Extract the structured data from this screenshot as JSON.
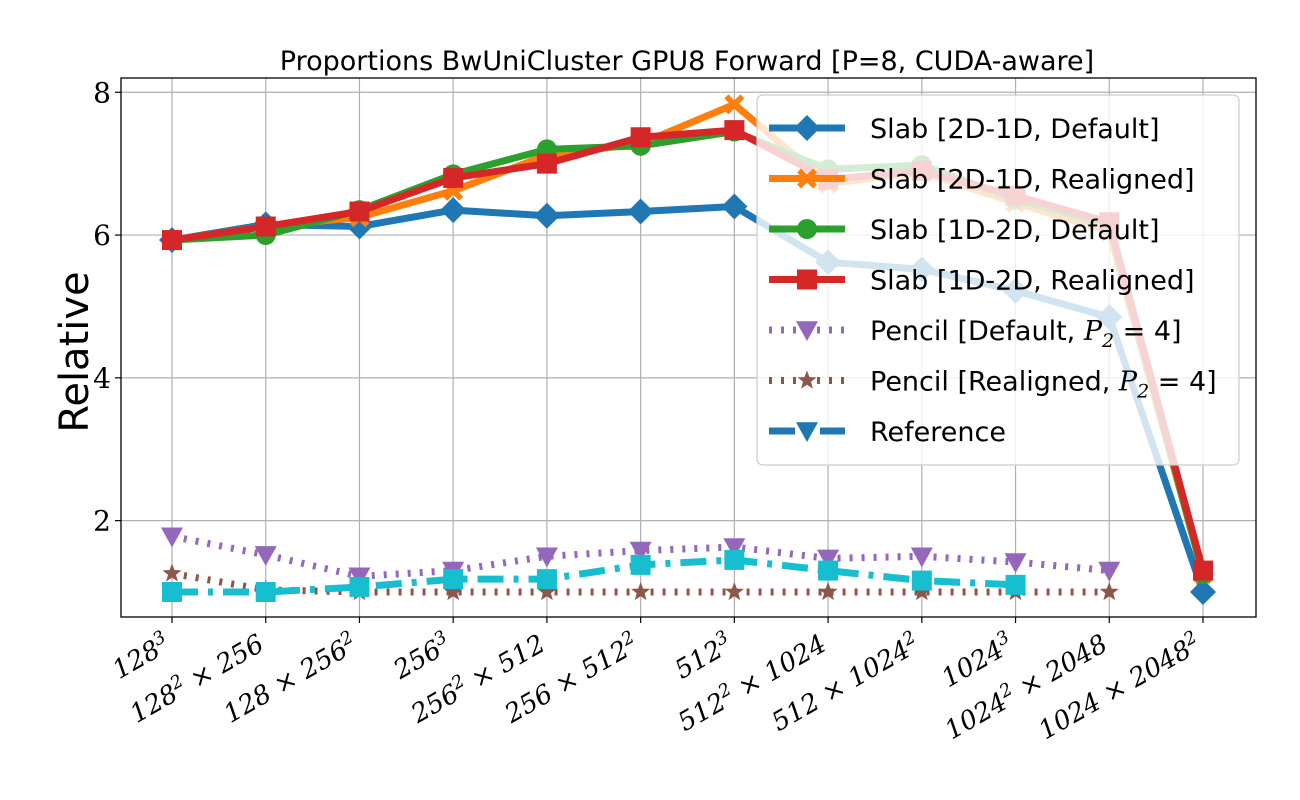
{
  "chart_data": {
    "type": "line",
    "title": "Proportions BwUniCluster GPU8 Forward [P=8, CUDA-aware]",
    "xlabel": "",
    "ylabel": "Relative",
    "categories": [
      {
        "base": "128",
        "sup": "3",
        "rest": ""
      },
      {
        "base": "128",
        "sup": "2",
        "rest": " × 256"
      },
      {
        "base": "128 × 256",
        "sup": "2",
        "rest": ""
      },
      {
        "base": "256",
        "sup": "3",
        "rest": ""
      },
      {
        "base": "256",
        "sup": "2",
        "rest": " × 512"
      },
      {
        "base": "256 × 512",
        "sup": "2",
        "rest": ""
      },
      {
        "base": "512",
        "sup": "3",
        "rest": ""
      },
      {
        "base": "512",
        "sup": "2",
        "rest": " × 1024"
      },
      {
        "base": "512 × 1024",
        "sup": "2",
        "rest": ""
      },
      {
        "base": "1024",
        "sup": "3",
        "rest": ""
      },
      {
        "base": "1024",
        "sup": "2",
        "rest": " × 2048"
      },
      {
        "base": "1024 × 2048",
        "sup": "2",
        "rest": ""
      }
    ],
    "ylim": [
      0.65,
      8.2
    ],
    "yticks": [
      2,
      4,
      6,
      8
    ],
    "grid": true,
    "legend_position": "top-right",
    "series": [
      {
        "name": "Slab [2D-1D, Default]",
        "color": "#1f77b4",
        "marker": "diamond",
        "dash": "solid",
        "values": [
          5.93,
          6.15,
          6.12,
          6.35,
          6.27,
          6.33,
          6.4,
          5.62,
          5.52,
          5.22,
          4.85,
          1.0
        ]
      },
      {
        "name": "Slab [2D-1D, Realigned]",
        "color": "#ff7f0e",
        "marker": "x",
        "dash": "solid",
        "values": [
          5.93,
          6.12,
          6.25,
          6.62,
          7.12,
          7.28,
          7.83,
          6.72,
          6.88,
          6.45,
          6.05,
          1.25
        ]
      },
      {
        "name": "Slab [1D-2D, Default]",
        "color": "#2ca02c",
        "marker": "circle",
        "dash": "solid",
        "values": [
          5.93,
          6.0,
          6.35,
          6.85,
          7.2,
          7.25,
          7.45,
          6.92,
          6.98,
          6.5,
          6.15,
          1.25
        ]
      },
      {
        "name": "Slab [1D-2D, Realigned]",
        "color": "#d62728",
        "marker": "square",
        "dash": "solid",
        "values": [
          5.93,
          6.12,
          6.33,
          6.8,
          7.0,
          7.37,
          7.47,
          6.78,
          6.9,
          6.55,
          6.18,
          1.3
        ]
      },
      {
        "name": "Pencil [Default, ",
        "name_math": "P",
        "name_sub": "2",
        "name_tail": " = 4]",
        "color": "#9467bd",
        "marker": "triangle-down",
        "dash": "dotted",
        "values": [
          1.78,
          1.52,
          1.22,
          1.3,
          1.5,
          1.58,
          1.63,
          1.47,
          1.5,
          1.42,
          1.3,
          null
        ]
      },
      {
        "name": "Pencil [Realigned, ",
        "name_math": "P",
        "name_sub": "2",
        "name_tail": " = 4]",
        "color": "#8c564b",
        "marker": "star",
        "dash": "dotted",
        "values": [
          1.26,
          1.03,
          1.0,
          1.0,
          1.0,
          1.0,
          1.0,
          1.0,
          1.0,
          1.0,
          1.0,
          null
        ]
      },
      {
        "name": "Reference",
        "color": "#17becf",
        "marker": "square",
        "dash": "dashdot",
        "values": [
          1.0,
          1.0,
          1.07,
          1.18,
          1.18,
          1.38,
          1.45,
          1.3,
          1.16,
          1.1,
          null,
          null
        ]
      }
    ],
    "legend": [
      {
        "label": "Slab [2D-1D, Default]",
        "color": "#1f77b4",
        "marker": "diamond",
        "dash": "solid"
      },
      {
        "label": "Slab [2D-1D, Realigned]",
        "color": "#ff7f0e",
        "marker": "x",
        "dash": "solid"
      },
      {
        "label": "Slab [1D-2D, Default]",
        "color": "#2ca02c",
        "marker": "circle",
        "dash": "solid"
      },
      {
        "label": "Slab [1D-2D, Realigned]",
        "color": "#d62728",
        "marker": "square",
        "dash": "solid"
      },
      {
        "label": "Pencil [Default, ",
        "math": "P",
        "sub": "2",
        "tail": " = 4]",
        "color": "#9467bd",
        "marker": "triangle-down",
        "dash": "dotted"
      },
      {
        "label": "Pencil [Realigned, ",
        "math": "P",
        "sub": "2",
        "tail": " = 4]",
        "color": "#8c564b",
        "marker": "star",
        "dash": "dotted"
      },
      {
        "label": "Reference",
        "color": "#1f77b4",
        "marker": "triangle-down",
        "dash": "dashdot"
      }
    ]
  }
}
